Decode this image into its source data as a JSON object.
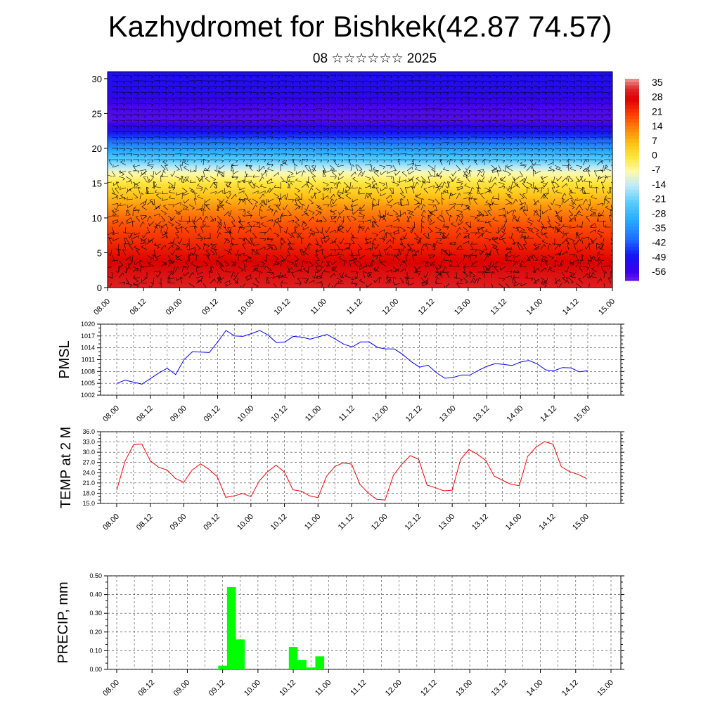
{
  "title": "Kazhydromet for Bishkek(42.87 74.57)",
  "subtitle": "08 ☆☆☆☆☆☆ 2025",
  "colors": {
    "pmsl_line": "#0000ff",
    "temp_line": "#ff0000",
    "precip_bar": "#00ff00",
    "wind_barb": "#000000"
  },
  "chart_data": [
    {
      "type": "heatmap",
      "name": "upper-air-temperature-with-wind",
      "x_ticks": [
        "08.00",
        "08.12",
        "09.00",
        "09.12",
        "10.00",
        "10.12",
        "11.00",
        "11.12",
        "12.00",
        "12.12",
        "13.00",
        "13.12",
        "14.00",
        "14.12",
        "15.00"
      ],
      "y_ticks": [
        0,
        5,
        10,
        15,
        20,
        25,
        30
      ],
      "ylim": [
        0,
        31
      ],
      "colorbar_labels": [
        "35",
        "28",
        "21",
        "14",
        "7",
        "0",
        "-7",
        "-14",
        "-21",
        "-28",
        "-35",
        "-42",
        "-49",
        "-56"
      ],
      "colorbar_range": [
        -60,
        38
      ],
      "level_temperature": [
        [
          0,
          32
        ],
        [
          3,
          29
        ],
        [
          6,
          24
        ],
        [
          9,
          19
        ],
        [
          11,
          14
        ],
        [
          13,
          7
        ],
        [
          15,
          0
        ],
        [
          16.5,
          -8
        ],
        [
          18,
          -20
        ],
        [
          19.5,
          -30
        ],
        [
          21,
          -40
        ],
        [
          22.5,
          -50
        ],
        [
          24,
          -58
        ],
        [
          26,
          -57
        ],
        [
          28,
          -52
        ],
        [
          31,
          -50
        ]
      ]
    },
    {
      "type": "line",
      "name": "PMSL",
      "ylabel": "PMSL",
      "x_ticks": [
        "08.00",
        "08.12",
        "09.00",
        "09.12",
        "10.00",
        "10.12",
        "11.00",
        "11.12",
        "12.00",
        "12.12",
        "13.00",
        "13.12",
        "14.00",
        "14.12",
        "15.00"
      ],
      "y_ticks": [
        "1020",
        "1017",
        "1014",
        "1011",
        "1008",
        "1005",
        "1002"
      ],
      "ylim": [
        1002,
        1020
      ],
      "series": [
        {
          "values": [
            1005.0,
            1005.8,
            1005.3,
            1004.8,
            1006.2,
            1007.6,
            1008.8,
            1007.2,
            1011.0,
            1013.0,
            1012.9,
            1012.8,
            1015.5,
            1018.4,
            1017.0,
            1016.9,
            1017.6,
            1018.4,
            1017.2,
            1015.3,
            1015.5,
            1016.9,
            1016.7,
            1016.2,
            1016.8,
            1017.4,
            1016.2,
            1014.9,
            1014.2,
            1015.5,
            1015.5,
            1014.1,
            1013.7,
            1013.7,
            1012.3,
            1010.5,
            1009.1,
            1009.6,
            1007.7,
            1006.3,
            1006.5,
            1007.1,
            1007.1,
            1008.3,
            1009.3,
            1010.0,
            1009.8,
            1009.5,
            1010.4,
            1010.8,
            1009.9,
            1008.4,
            1008.2,
            1009.0,
            1008.9,
            1007.9,
            1008.2
          ]
        }
      ]
    },
    {
      "type": "line",
      "name": "TEMP at 2 M",
      "ylabel": "TEMP at 2 M",
      "x_ticks": [
        "08.00",
        "08.12",
        "09.00",
        "09.12",
        "10.00",
        "10.12",
        "11.00",
        "11.12",
        "12.00",
        "12.12",
        "13.00",
        "13.12",
        "14.00",
        "14.12",
        "15.00"
      ],
      "y_ticks": [
        "36.0",
        "33.0",
        "30.0",
        "27.0",
        "24.0",
        "21.0",
        "18.0",
        "15.0"
      ],
      "ylim": [
        15,
        36
      ],
      "series": [
        {
          "values": [
            18.9,
            27.4,
            32.2,
            32.4,
            27.5,
            25.6,
            24.8,
            22.3,
            21.2,
            24.8,
            26.6,
            25.0,
            22.8,
            16.8,
            17.2,
            17.9,
            17.0,
            21.6,
            24.3,
            26.2,
            24.2,
            19.0,
            18.6,
            17.2,
            16.7,
            22.9,
            25.8,
            26.9,
            26.5,
            20.6,
            18.0,
            16.2,
            16.0,
            23.3,
            26.5,
            29.0,
            27.9,
            20.4,
            19.6,
            18.7,
            18.9,
            27.9,
            30.8,
            29.4,
            27.6,
            23.0,
            21.8,
            20.6,
            20.2,
            28.8,
            31.5,
            33.1,
            32.4,
            25.8,
            24.3,
            23.5,
            22.3
          ]
        }
      ]
    },
    {
      "type": "bar",
      "name": "PRECIP",
      "ylabel": "PRECIP, mm",
      "x_ticks": [
        "08.00",
        "08.12",
        "09.00",
        "09.12",
        "10.00",
        "10.12",
        "11.00",
        "11.12",
        "12.00",
        "12.12",
        "13.00",
        "13.12",
        "14.00",
        "14.12",
        "15.00"
      ],
      "y_ticks": [
        "0.50",
        "0.40",
        "0.30",
        "0.20",
        "0.10",
        "0.00"
      ],
      "ylim": [
        0,
        0.5
      ],
      "values": [
        0,
        0,
        0,
        0,
        0,
        0,
        0,
        0,
        0,
        0,
        0,
        0,
        0.02,
        0.44,
        0.16,
        0,
        0,
        0,
        0,
        0,
        0.12,
        0.05,
        0.01,
        0.07,
        0,
        0,
        0,
        0,
        0,
        0,
        0,
        0,
        0,
        0,
        0,
        0,
        0,
        0,
        0,
        0,
        0,
        0,
        0,
        0,
        0,
        0,
        0,
        0,
        0,
        0,
        0,
        0,
        0,
        0,
        0,
        0,
        0
      ]
    }
  ]
}
